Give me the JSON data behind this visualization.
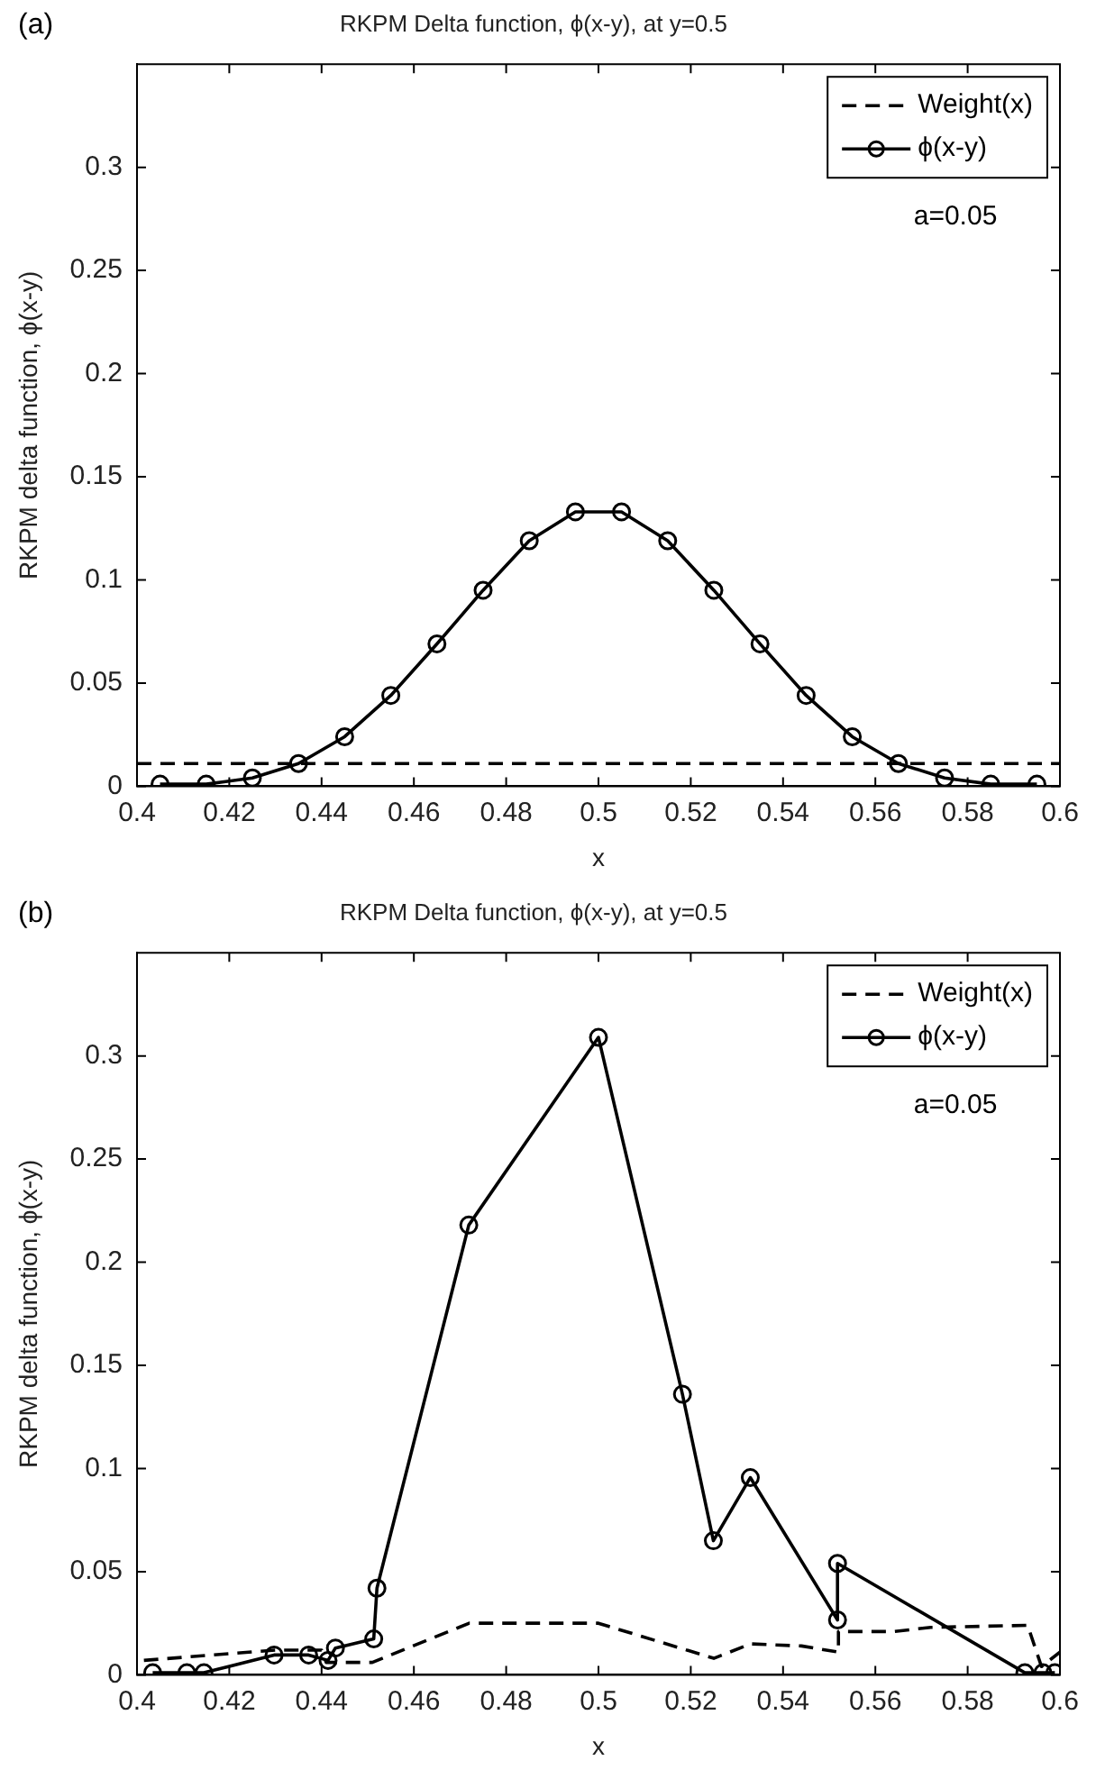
{
  "chart_data": [
    {
      "type": "line",
      "title": "RKPM Delta function, ϕ(x-y), at y=0.5",
      "xlabel": "x",
      "ylabel": "RKPM delta function, ϕ(x-y)",
      "annotations": [
        "(a)",
        "a=0.05"
      ],
      "xlim": [
        0.4,
        0.6
      ],
      "xticks": [
        0.4,
        0.42,
        0.44,
        0.46,
        0.48,
        0.5,
        0.52,
        0.54,
        0.56,
        0.58,
        0.6
      ],
      "ylim": [
        0,
        0.35
      ],
      "yticks": [
        0,
        0.05,
        0.1,
        0.15,
        0.2,
        0.25,
        0.3
      ],
      "grid": false,
      "legend": "top right",
      "series": [
        {
          "name": "Weight(x)",
          "color": "#000000",
          "line_style": "dashed",
          "marker": "none",
          "x": [
            0.4,
            0.6
          ],
          "values": [
            0.011,
            0.011
          ]
        },
        {
          "name": "ϕ(x-y)",
          "color": "#000000",
          "line_style": "solid",
          "marker": "circle",
          "x": [
            0.405,
            0.415,
            0.425,
            0.435,
            0.445,
            0.455,
            0.465,
            0.475,
            0.485,
            0.495,
            0.505,
            0.515,
            0.525,
            0.535,
            0.545,
            0.555,
            0.565,
            0.575,
            0.585,
            0.595
          ],
          "values": [
            0.001,
            0.001,
            0.004,
            0.011,
            0.024,
            0.044,
            0.069,
            0.095,
            0.119,
            0.133,
            0.133,
            0.119,
            0.095,
            0.069,
            0.044,
            0.024,
            0.011,
            0.004,
            0.001,
            0.001
          ]
        }
      ]
    },
    {
      "type": "line",
      "title": "RKPM Delta function, ϕ(x-y), at y=0.5",
      "xlabel": "x",
      "ylabel": "RKPM delta function, ϕ(x-y)",
      "annotations": [
        "(b)",
        "a=0.05"
      ],
      "xlim": [
        0.4,
        0.6
      ],
      "xticks": [
        0.4,
        0.42,
        0.44,
        0.46,
        0.48,
        0.5,
        0.52,
        0.54,
        0.56,
        0.58,
        0.6
      ],
      "ylim": [
        0,
        0.35
      ],
      "yticks": [
        0,
        0.05,
        0.1,
        0.15,
        0.2,
        0.25,
        0.3
      ],
      "grid": false,
      "legend": "top right",
      "series": [
        {
          "name": "Weight(x)",
          "color": "#000000",
          "line_style": "dashed",
          "marker": "none",
          "x": [
            0.4015,
            0.43,
            0.44,
            0.441,
            0.451,
            0.472,
            0.5,
            0.525,
            0.533,
            0.544,
            0.552,
            0.552,
            0.564,
            0.572,
            0.593,
            0.596,
            0.6
          ],
          "values": [
            0.007,
            0.012,
            0.012,
            0.006,
            0.006,
            0.025,
            0.025,
            0.008,
            0.015,
            0.014,
            0.011,
            0.021,
            0.021,
            0.023,
            0.024,
            0.004,
            0.011
          ]
        },
        {
          "name": "ϕ(x-y)",
          "color": "#000000",
          "line_style": "solid",
          "marker": "circle",
          "x": [
            0.4034,
            0.4108,
            0.4145,
            0.4297,
            0.4372,
            0.4414,
            0.443,
            0.4513,
            0.452,
            0.4719,
            0.5,
            0.5182,
            0.5249,
            0.5329,
            0.5518,
            0.5518,
            0.5924,
            0.5963,
            0.5989
          ],
          "values": [
            0.001,
            0.001,
            0.001,
            0.0096,
            0.0096,
            0.007,
            0.013,
            0.0174,
            0.042,
            0.218,
            0.309,
            0.136,
            0.065,
            0.0956,
            0.0266,
            0.054,
            0.001,
            0.001,
            0.001
          ]
        }
      ]
    }
  ]
}
